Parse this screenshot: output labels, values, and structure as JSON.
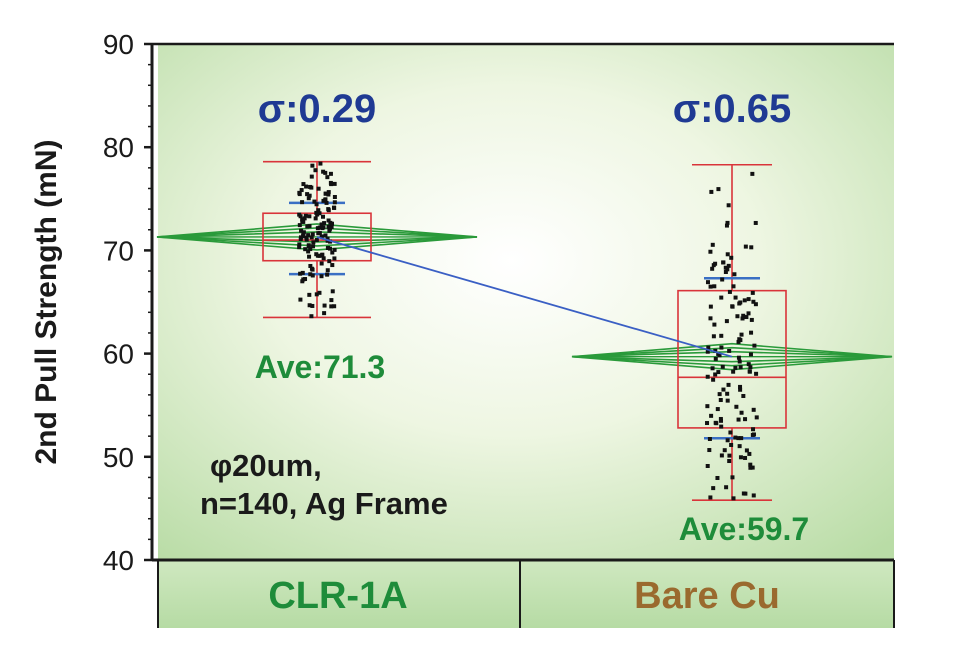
{
  "chart_data": {
    "type": "box",
    "ylabel": "2nd Pull Strength (mN)",
    "ylim": [
      40,
      90
    ],
    "yticks": [
      "40",
      "50",
      "60",
      "70",
      "80",
      "90"
    ],
    "categories": [
      "CLR-1A",
      "Bare Cu"
    ],
    "category_colors": [
      "#1e8c3a",
      "#9a6a2e"
    ],
    "grid": false,
    "series": [
      {
        "category": "CLR-1A",
        "min": 63.5,
        "q1": 69.0,
        "median": 71.0,
        "q3": 73.6,
        "max": 78.6,
        "mean": 71.3,
        "sd_low": 67.7,
        "sd_high": 74.6,
        "sigma_label": "σ:0.29",
        "ave_label": "Ave:71.3"
      },
      {
        "category": "Bare Cu",
        "min": 45.8,
        "q1": 52.8,
        "median": 57.7,
        "q3": 66.1,
        "max": 78.3,
        "mean": 59.7,
        "sd_low": 51.8,
        "sd_high": 67.3,
        "sigma_label": "σ:0.65",
        "ave_label": "Ave:59.7"
      }
    ],
    "annotation_lines": [
      "φ20um,",
      "n=140, Ag Frame"
    ],
    "colors": {
      "box": "#d9343a",
      "whisker": "#d9343a",
      "sd_bar": "#3a6fc4",
      "diamond": "#2a9a3a",
      "mean_line": "#3a5fc4",
      "points": "#111111"
    }
  }
}
